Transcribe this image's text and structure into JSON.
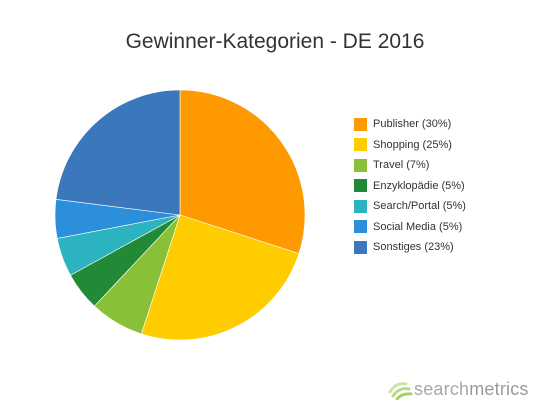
{
  "chart_data": {
    "type": "pie",
    "title": "Gewinner-Kategorien - DE 2016",
    "legend_position": "right",
    "slices": [
      {
        "label": "Publisher (30%)",
        "value": 30,
        "color": "#ff9900"
      },
      {
        "label": "Shopping (25%)",
        "value": 25,
        "color": "#ffcc00"
      },
      {
        "label": "Travel (7%)",
        "value": 7,
        "color": "#88c037"
      },
      {
        "label": "Enzyklopädie (5%)",
        "value": 5,
        "color": "#228a37"
      },
      {
        "label": "Search/Portal (5%)",
        "value": 5,
        "color": "#2bb3bf"
      },
      {
        "label": "Social Media (5%)",
        "value": 5,
        "color": "#2b8fdb"
      },
      {
        "label": "Sonstiges (23%)",
        "value": 23,
        "color": "#3a78bb"
      }
    ]
  },
  "brand": {
    "part1": "search",
    "part2": "metrics",
    "logo_icon": "searchmetrics-logo-icon"
  }
}
